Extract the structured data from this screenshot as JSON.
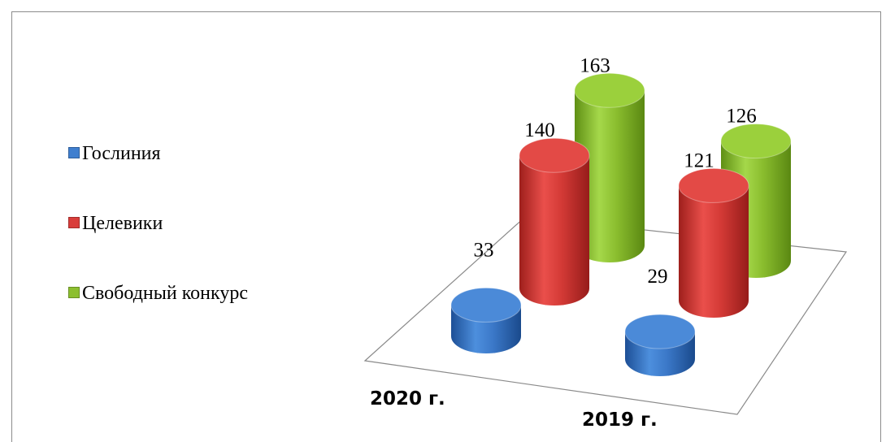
{
  "chart_data": {
    "type": "bar",
    "style": "3d-cylinder",
    "categories": [
      "2020 г.",
      "2019 г."
    ],
    "series": [
      {
        "name": "Гослиния",
        "values": [
          33,
          29
        ],
        "color": "#3f7fcf"
      },
      {
        "name": "Целевики",
        "values": [
          140,
          121
        ],
        "color": "#d93d3a"
      },
      {
        "name": "Свободный конкурс",
        "values": [
          163,
          126
        ],
        "color": "#8cbf2f"
      }
    ],
    "data_labels": true,
    "legend": "left",
    "grid": false
  }
}
